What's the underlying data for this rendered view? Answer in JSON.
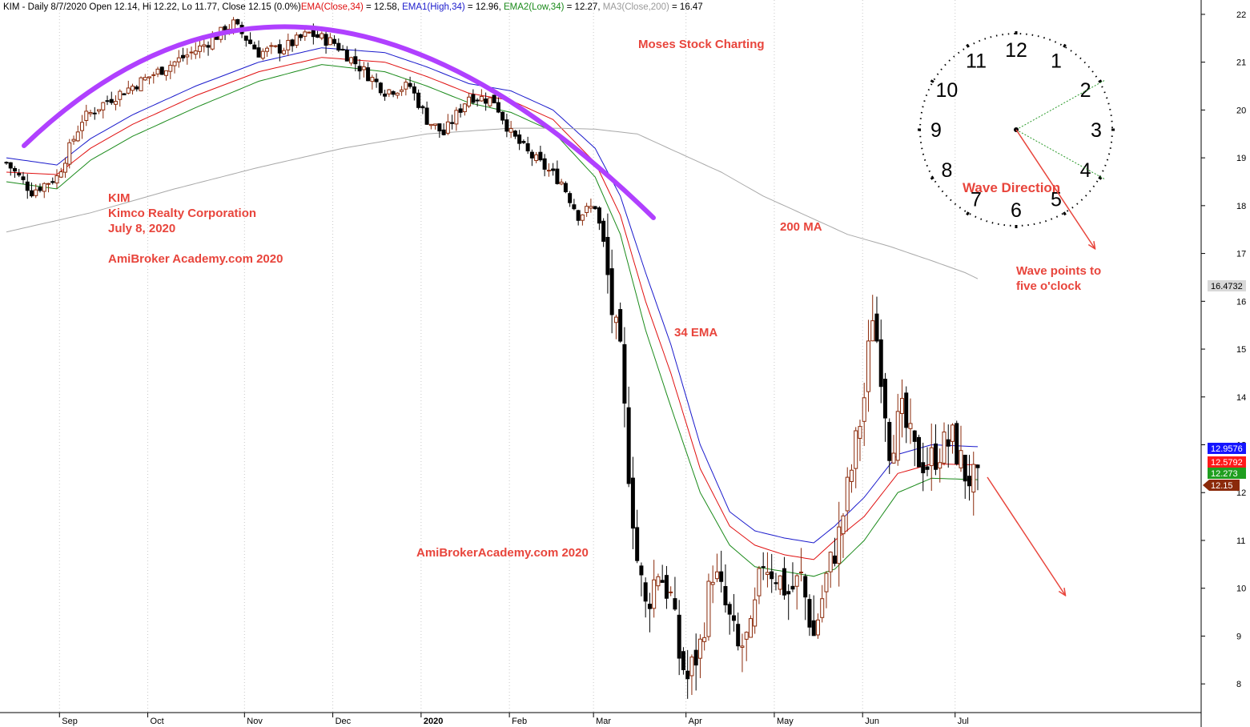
{
  "header": {
    "symbol": "KIM - Daily 8/7/2020 Open 12.14, Hi 12.22, Lo 11.77, Close 12.15 (0.0%)",
    "ema": "EMA(Close,34)",
    "ema_val": " = 12.58, ",
    "ema1": "EMA1(High,34)",
    "ema1_val": " = 12.96, ",
    "ema2": "EMA2(Low,34)",
    "ema2_val": " = 12.27, ",
    "ma3": "MA3(Close,200)",
    "ma3_val": " = 16.47"
  },
  "annotations": {
    "moses": "Moses Stock Charting",
    "kim": "KIM",
    "company": "Kimco Realty Corporation",
    "date": "July 8, 2020",
    "academy1": "AmiBroker Academy.com  2020",
    "academy2": "AmiBrokerAcademy.com  2020",
    "ma200": "200 MA",
    "ema34": "34 EMA",
    "wave_direction": "Wave  Direction",
    "wave_points_1": "Wave points to",
    "wave_points_2": "five o'clock"
  },
  "clock": {
    "numbers": [
      "12",
      "1",
      "2",
      "3",
      "4",
      "5",
      "6",
      "7",
      "8",
      "9",
      "10",
      "11"
    ]
  },
  "price_tags": [
    {
      "label": "16.4732",
      "value": 16.4732,
      "bg": "#d8d8d8",
      "fg": "#000000"
    },
    {
      "label": "12.9576",
      "value": 12.9576,
      "bg": "#1515ff",
      "fg": "#ffffff"
    },
    {
      "label": "12.5792",
      "value": 12.5792,
      "bg": "#ff1a1a",
      "fg": "#ffffff"
    },
    {
      "label": "12.273",
      "value": 12.273,
      "bg": "#1f9e1f",
      "fg": "#ffffff"
    },
    {
      "label": "12.15",
      "value": 12.15,
      "bg": "#8b2a0a",
      "fg": "#ffffff"
    }
  ],
  "colors": {
    "up_candle": "#8b2a0a",
    "down_candle": "#000000",
    "ema_close": "#e01010",
    "ema_high": "#1a1acc",
    "ema_low": "#1a8a1a",
    "ma200": "#a8a8a8",
    "arc": "#b040ff",
    "annotation": "#e8453c",
    "ma3_label": "#9a9a9a"
  },
  "chart_data": {
    "type": "candlestick",
    "title": "KIM - Daily 8/7/2020",
    "ylim": [
      7.4,
      22.3
    ],
    "y_ticks": [
      8,
      9,
      10,
      11,
      12,
      13,
      14,
      15,
      16,
      17,
      18,
      19,
      20,
      21,
      22
    ],
    "x_ticks": [
      {
        "label": "Sep",
        "i": 13
      },
      {
        "label": "Oct",
        "i": 34
      },
      {
        "label": "Nov",
        "i": 57
      },
      {
        "label": "Dec",
        "i": 78
      },
      {
        "label": "2020",
        "i": 99
      },
      {
        "label": "Feb",
        "i": 120
      },
      {
        "label": "Mar",
        "i": 140
      },
      {
        "label": "Apr",
        "i": 162
      },
      {
        "label": "May",
        "i": 183
      },
      {
        "label": "Jun",
        "i": 204
      },
      {
        "label": "Jul",
        "i": 226
      }
    ],
    "series": [
      {
        "name": "EMA(Close,34)",
        "color": "#e01010",
        "points": [
          [
            0,
            18.7
          ],
          [
            12,
            18.65
          ],
          [
            20,
            19.2
          ],
          [
            30,
            19.7
          ],
          [
            45,
            20.3
          ],
          [
            60,
            20.8
          ],
          [
            75,
            21.1
          ],
          [
            90,
            21.0
          ],
          [
            100,
            20.7
          ],
          [
            110,
            20.35
          ],
          [
            120,
            20.2
          ],
          [
            130,
            19.8
          ],
          [
            140,
            18.9
          ],
          [
            146,
            17.8
          ],
          [
            152,
            16.0
          ],
          [
            158,
            14.5
          ],
          [
            165,
            12.5
          ],
          [
            172,
            11.3
          ],
          [
            178,
            10.9
          ],
          [
            185,
            10.7
          ],
          [
            192,
            10.6
          ],
          [
            197,
            11.0
          ],
          [
            204,
            11.5
          ],
          [
            212,
            12.4
          ],
          [
            220,
            12.6
          ],
          [
            231,
            12.58
          ]
        ]
      },
      {
        "name": "EMA1(High,34)",
        "color": "#1a1acc",
        "points": [
          [
            0,
            19.0
          ],
          [
            12,
            18.85
          ],
          [
            20,
            19.4
          ],
          [
            30,
            19.9
          ],
          [
            45,
            20.5
          ],
          [
            60,
            21.0
          ],
          [
            75,
            21.3
          ],
          [
            90,
            21.2
          ],
          [
            100,
            20.9
          ],
          [
            110,
            20.55
          ],
          [
            120,
            20.4
          ],
          [
            130,
            20.0
          ],
          [
            140,
            19.2
          ],
          [
            146,
            18.2
          ],
          [
            152,
            16.6
          ],
          [
            158,
            15.1
          ],
          [
            165,
            13.0
          ],
          [
            172,
            11.6
          ],
          [
            178,
            11.2
          ],
          [
            185,
            11.05
          ],
          [
            192,
            10.95
          ],
          [
            197,
            11.3
          ],
          [
            204,
            11.9
          ],
          [
            212,
            12.8
          ],
          [
            220,
            13.0
          ],
          [
            231,
            12.96
          ]
        ]
      },
      {
        "name": "EMA2(Low,34)",
        "color": "#1a8a1a",
        "points": [
          [
            0,
            18.5
          ],
          [
            12,
            18.35
          ],
          [
            20,
            18.95
          ],
          [
            30,
            19.45
          ],
          [
            45,
            20.05
          ],
          [
            60,
            20.6
          ],
          [
            75,
            20.95
          ],
          [
            90,
            20.8
          ],
          [
            100,
            20.5
          ],
          [
            110,
            20.15
          ],
          [
            120,
            19.95
          ],
          [
            130,
            19.55
          ],
          [
            140,
            18.6
          ],
          [
            146,
            17.4
          ],
          [
            152,
            15.4
          ],
          [
            158,
            13.8
          ],
          [
            165,
            12.0
          ],
          [
            172,
            10.9
          ],
          [
            178,
            10.45
          ],
          [
            185,
            10.35
          ],
          [
            192,
            10.25
          ],
          [
            197,
            10.4
          ],
          [
            204,
            11.0
          ],
          [
            212,
            12.0
          ],
          [
            220,
            12.3
          ],
          [
            231,
            12.27
          ]
        ]
      },
      {
        "name": "MA3(Close,200)",
        "color": "#a8a8a8",
        "points": [
          [
            0,
            17.45
          ],
          [
            20,
            17.85
          ],
          [
            40,
            18.35
          ],
          [
            60,
            18.8
          ],
          [
            80,
            19.2
          ],
          [
            100,
            19.5
          ],
          [
            120,
            19.62
          ],
          [
            130,
            19.62
          ],
          [
            140,
            19.6
          ],
          [
            150,
            19.5
          ],
          [
            160,
            19.1
          ],
          [
            170,
            18.7
          ],
          [
            180,
            18.2
          ],
          [
            190,
            17.8
          ],
          [
            200,
            17.4
          ],
          [
            210,
            17.15
          ],
          [
            220,
            16.85
          ],
          [
            228,
            16.6
          ],
          [
            231,
            16.47
          ]
        ]
      }
    ],
    "price_waypoints": [
      [
        0,
        18.9
      ],
      [
        6,
        18.3
      ],
      [
        12,
        18.6
      ],
      [
        18,
        19.8
      ],
      [
        24,
        20.2
      ],
      [
        30,
        20.5
      ],
      [
        38,
        20.9
      ],
      [
        46,
        21.3
      ],
      [
        54,
        21.8
      ],
      [
        60,
        21.2
      ],
      [
        66,
        21.3
      ],
      [
        72,
        21.6
      ],
      [
        78,
        21.4
      ],
      [
        84,
        20.9
      ],
      [
        90,
        20.4
      ],
      [
        96,
        20.5
      ],
      [
        100,
        19.8
      ],
      [
        104,
        19.5
      ],
      [
        110,
        20.3
      ],
      [
        116,
        20.2
      ],
      [
        120,
        19.5
      ],
      [
        124,
        19.1
      ],
      [
        128,
        18.8
      ],
      [
        132,
        18.5
      ],
      [
        136,
        17.8
      ],
      [
        140,
        18.0
      ],
      [
        142,
        17.2
      ],
      [
        144,
        15.8
      ],
      [
        146,
        14.8
      ],
      [
        148,
        12.5
      ],
      [
        150,
        10.6
      ],
      [
        152,
        9.6
      ],
      [
        155,
        10.4
      ],
      [
        158,
        9.8
      ],
      [
        160,
        8.6
      ],
      [
        162,
        8.1
      ],
      [
        165,
        8.8
      ],
      [
        168,
        10.4
      ],
      [
        171,
        9.6
      ],
      [
        174,
        8.7
      ],
      [
        177,
        9.0
      ],
      [
        180,
        10.6
      ],
      [
        183,
        10.3
      ],
      [
        186,
        9.9
      ],
      [
        189,
        10.2
      ],
      [
        192,
        9.0
      ],
      [
        195,
        10.2
      ],
      [
        198,
        11.1
      ],
      [
        201,
        12.5
      ],
      [
        204,
        14.0
      ],
      [
        206,
        15.8
      ],
      [
        208,
        14.6
      ],
      [
        210,
        13.0
      ],
      [
        213,
        13.6
      ],
      [
        216,
        12.8
      ],
      [
        219,
        12.6
      ],
      [
        222,
        12.9
      ],
      [
        225,
        13.1
      ],
      [
        228,
        12.4
      ],
      [
        231,
        12.15
      ]
    ]
  }
}
